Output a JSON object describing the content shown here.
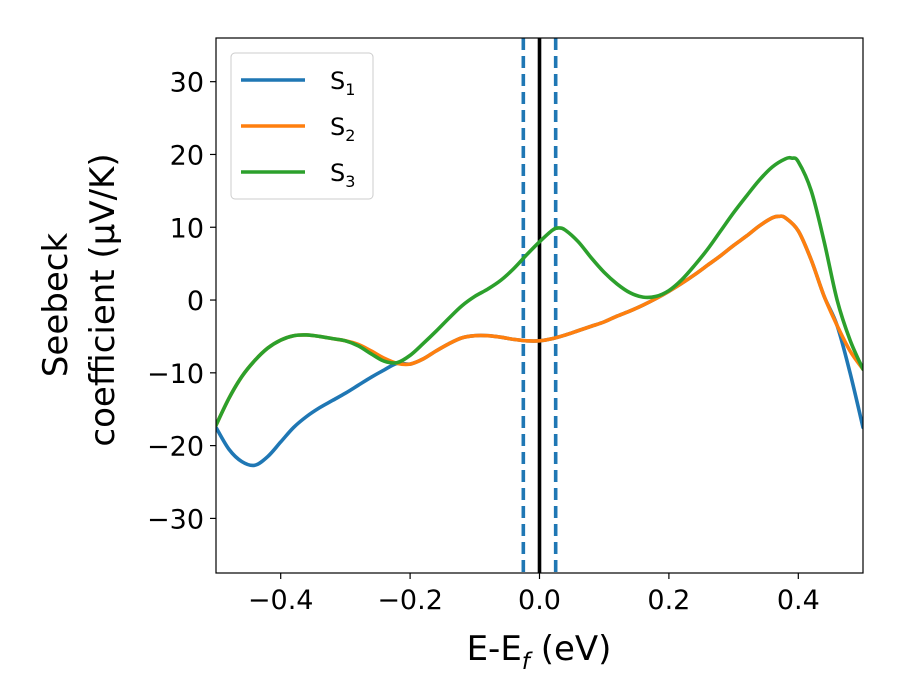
{
  "chart_data": {
    "type": "line",
    "xlabel": "E-E_f (eV)",
    "xlabel_parts": {
      "main": "E-E",
      "sub": "f",
      "tail": " (eV)"
    },
    "ylabel_lines": [
      "Seebeck",
      "coefficient  (μV/K)"
    ],
    "xlim": [
      -0.5,
      0.5
    ],
    "ylim": [
      -37.5,
      36
    ],
    "xticks": [
      -0.4,
      -0.2,
      0.0,
      0.2,
      0.4
    ],
    "xtick_labels": [
      "−0.4",
      "−0.2",
      "0.0",
      "0.2",
      "0.4"
    ],
    "yticks": [
      -30,
      -20,
      -10,
      0,
      10,
      20,
      30
    ],
    "ytick_labels": [
      "−30",
      "−20",
      "−10",
      "0",
      "10",
      "20",
      "30"
    ],
    "grid": false,
    "legend_position": "top-left",
    "vlines": [
      {
        "x": -0.025,
        "style": "dashed",
        "color": "#1f77b4"
      },
      {
        "x": 0.0,
        "style": "solid",
        "color": "#000000"
      },
      {
        "x": 0.025,
        "style": "dashed",
        "color": "#1f77b4"
      }
    ],
    "series": [
      {
        "name": "S_1",
        "legend": {
          "main": "S",
          "sub": "1"
        },
        "color": "#1f77b4",
        "points": [
          [
            -0.5,
            -17.5
          ],
          [
            -0.48,
            -20.5
          ],
          [
            -0.46,
            -22.2
          ],
          [
            -0.44,
            -22.7
          ],
          [
            -0.42,
            -21.5
          ],
          [
            -0.4,
            -19.5
          ],
          [
            -0.38,
            -17.5
          ],
          [
            -0.36,
            -16
          ],
          [
            -0.34,
            -14.8
          ],
          [
            -0.32,
            -13.8
          ],
          [
            -0.3,
            -12.8
          ],
          [
            -0.28,
            -11.7
          ],
          [
            -0.26,
            -10.6
          ],
          [
            -0.24,
            -9.6
          ],
          [
            -0.22,
            -8.7
          ],
          [
            -0.2,
            -8.8
          ],
          [
            -0.18,
            -8.1
          ],
          [
            -0.16,
            -7
          ],
          [
            -0.14,
            -6
          ],
          [
            -0.12,
            -5.2
          ],
          [
            -0.1,
            -4.9
          ],
          [
            -0.08,
            -4.9
          ],
          [
            -0.06,
            -5.1
          ],
          [
            -0.04,
            -5.4
          ],
          [
            -0.02,
            -5.6
          ],
          [
            0.0,
            -5.6
          ],
          [
            0.02,
            -5.3
          ],
          [
            0.04,
            -4.8
          ],
          [
            0.06,
            -4.2
          ],
          [
            0.08,
            -3.6
          ],
          [
            0.1,
            -3
          ],
          [
            0.12,
            -2.2
          ],
          [
            0.14,
            -1.5
          ],
          [
            0.16,
            -0.7
          ],
          [
            0.18,
            0.2
          ],
          [
            0.2,
            1.2
          ],
          [
            0.22,
            2.3
          ],
          [
            0.24,
            3.5
          ],
          [
            0.26,
            4.8
          ],
          [
            0.28,
            6.1
          ],
          [
            0.3,
            7.5
          ],
          [
            0.32,
            8.8
          ],
          [
            0.34,
            10.2
          ],
          [
            0.36,
            11.3
          ],
          [
            0.37,
            11.5
          ],
          [
            0.38,
            11.3
          ],
          [
            0.4,
            9.5
          ],
          [
            0.42,
            5.5
          ],
          [
            0.44,
            0.5
          ],
          [
            0.46,
            -3.5
          ],
          [
            0.48,
            -10
          ],
          [
            0.5,
            -17.5
          ]
        ]
      },
      {
        "name": "S_2",
        "legend": {
          "main": "S",
          "sub": "2"
        },
        "color": "#ff7f0e",
        "points": [
          [
            -0.5,
            -17.2
          ],
          [
            -0.48,
            -13.5
          ],
          [
            -0.46,
            -10.5
          ],
          [
            -0.44,
            -8.3
          ],
          [
            -0.42,
            -6.6
          ],
          [
            -0.4,
            -5.5
          ],
          [
            -0.38,
            -4.9
          ],
          [
            -0.36,
            -4.8
          ],
          [
            -0.34,
            -5
          ],
          [
            -0.32,
            -5.3
          ],
          [
            -0.3,
            -5.6
          ],
          [
            -0.28,
            -6.1
          ],
          [
            -0.26,
            -7
          ],
          [
            -0.24,
            -8
          ],
          [
            -0.22,
            -8.7
          ],
          [
            -0.2,
            -8.8
          ],
          [
            -0.18,
            -8.1
          ],
          [
            -0.16,
            -7
          ],
          [
            -0.14,
            -6
          ],
          [
            -0.12,
            -5.2
          ],
          [
            -0.1,
            -4.9
          ],
          [
            -0.08,
            -4.9
          ],
          [
            -0.06,
            -5.1
          ],
          [
            -0.04,
            -5.4
          ],
          [
            -0.02,
            -5.6
          ],
          [
            0.0,
            -5.6
          ],
          [
            0.02,
            -5.3
          ],
          [
            0.04,
            -4.8
          ],
          [
            0.06,
            -4.2
          ],
          [
            0.08,
            -3.6
          ],
          [
            0.1,
            -3
          ],
          [
            0.12,
            -2.2
          ],
          [
            0.14,
            -1.5
          ],
          [
            0.16,
            -0.7
          ],
          [
            0.18,
            0.2
          ],
          [
            0.2,
            1.2
          ],
          [
            0.22,
            2.3
          ],
          [
            0.24,
            3.5
          ],
          [
            0.26,
            4.8
          ],
          [
            0.28,
            6.1
          ],
          [
            0.3,
            7.5
          ],
          [
            0.32,
            8.8
          ],
          [
            0.34,
            10.2
          ],
          [
            0.36,
            11.3
          ],
          [
            0.37,
            11.5
          ],
          [
            0.38,
            11.3
          ],
          [
            0.4,
            9.5
          ],
          [
            0.42,
            5.5
          ],
          [
            0.44,
            0.5
          ],
          [
            0.46,
            -3.5
          ],
          [
            0.48,
            -7
          ],
          [
            0.5,
            -9.5
          ]
        ]
      },
      {
        "name": "S_3",
        "legend": {
          "main": "S",
          "sub": "3"
        },
        "color": "#2ca02c",
        "points": [
          [
            -0.5,
            -17.2
          ],
          [
            -0.48,
            -13.5
          ],
          [
            -0.46,
            -10.5
          ],
          [
            -0.44,
            -8.3
          ],
          [
            -0.42,
            -6.6
          ],
          [
            -0.4,
            -5.5
          ],
          [
            -0.38,
            -4.9
          ],
          [
            -0.36,
            -4.8
          ],
          [
            -0.34,
            -5
          ],
          [
            -0.32,
            -5.3
          ],
          [
            -0.3,
            -5.6
          ],
          [
            -0.28,
            -6.3
          ],
          [
            -0.26,
            -7.4
          ],
          [
            -0.24,
            -8.4
          ],
          [
            -0.22,
            -8.6
          ],
          [
            -0.2,
            -7.6
          ],
          [
            -0.18,
            -6
          ],
          [
            -0.16,
            -4.3
          ],
          [
            -0.14,
            -2.5
          ],
          [
            -0.12,
            -0.8
          ],
          [
            -0.1,
            0.5
          ],
          [
            -0.08,
            1.5
          ],
          [
            -0.06,
            2.7
          ],
          [
            -0.04,
            4.3
          ],
          [
            -0.02,
            6.2
          ],
          [
            0.0,
            8
          ],
          [
            0.02,
            9.6
          ],
          [
            0.03,
            9.9
          ],
          [
            0.04,
            9.6
          ],
          [
            0.06,
            8
          ],
          [
            0.08,
            5.8
          ],
          [
            0.1,
            3.8
          ],
          [
            0.12,
            2.2
          ],
          [
            0.14,
            1
          ],
          [
            0.16,
            0.4
          ],
          [
            0.18,
            0.5
          ],
          [
            0.2,
            1.3
          ],
          [
            0.22,
            2.8
          ],
          [
            0.24,
            4.8
          ],
          [
            0.26,
            7
          ],
          [
            0.28,
            9.5
          ],
          [
            0.3,
            12
          ],
          [
            0.32,
            14.3
          ],
          [
            0.34,
            16.5
          ],
          [
            0.36,
            18.3
          ],
          [
            0.38,
            19.4
          ],
          [
            0.39,
            19.5
          ],
          [
            0.4,
            19
          ],
          [
            0.42,
            15
          ],
          [
            0.44,
            8
          ],
          [
            0.46,
            0
          ],
          [
            0.48,
            -5.5
          ],
          [
            0.5,
            -9.5
          ]
        ]
      }
    ]
  }
}
